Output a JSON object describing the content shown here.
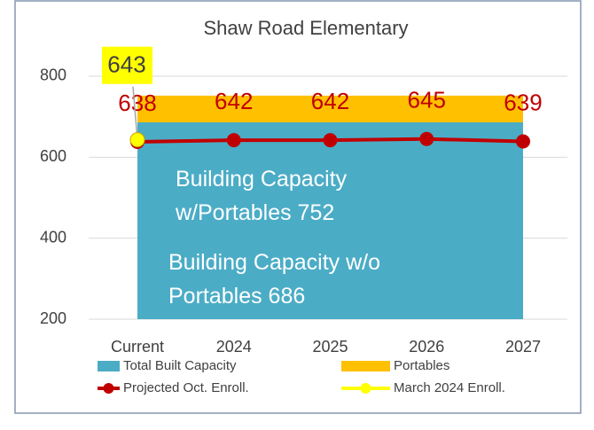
{
  "chart_data": {
    "type": "area",
    "title": "Shaw Road Elementary",
    "categories": [
      "Current",
      "2024",
      "2025",
      "2026",
      "2027"
    ],
    "series": [
      {
        "name": "Total Built Capacity",
        "type": "area",
        "color": "#4bacc6",
        "values": [
          686,
          686,
          686,
          686,
          686
        ]
      },
      {
        "name": "Portables",
        "type": "area",
        "color": "#ffc000",
        "values": [
          66,
          66,
          66,
          66,
          66
        ]
      },
      {
        "name": "Projected Oct. Enroll.",
        "type": "line",
        "color": "#c00000",
        "values": [
          638,
          642,
          642,
          645,
          639
        ]
      },
      {
        "name": "March 2024 Enroll.",
        "type": "line",
        "color": "#ffff00",
        "values": [
          643,
          null,
          null,
          null,
          null
        ]
      }
    ],
    "annotations": [
      "Building Capacity w/Portables 752",
      "Building Capacity w/o Portables 686"
    ],
    "ylim": [
      200,
      900
    ],
    "yticks": [
      200,
      400,
      600,
      800
    ],
    "grid": true,
    "legend": "bottom"
  }
}
